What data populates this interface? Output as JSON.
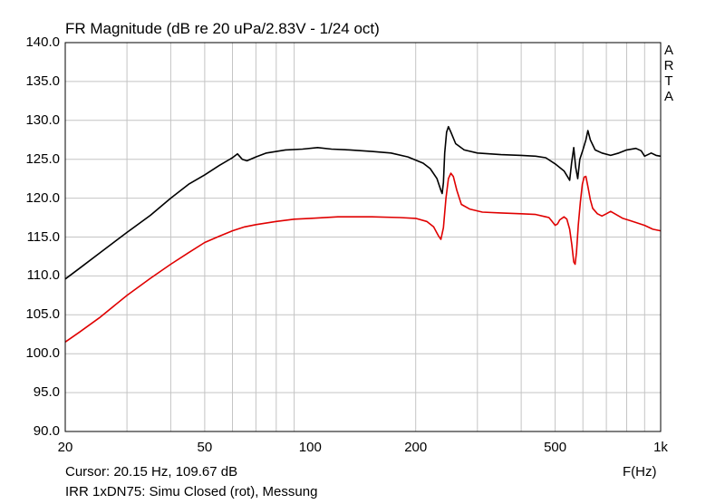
{
  "chart_data": {
    "type": "line",
    "title": "FR Magnitude (dB re 20 uPa/2.83V - 1/24 oct)",
    "xlabel": "F(Hz)",
    "ylabel": "",
    "xscale": "log",
    "xlim": [
      20,
      1000
    ],
    "ylim": [
      90,
      140
    ],
    "grid": true,
    "x_tick_labels": [
      "20",
      "50",
      "100",
      "200",
      "500",
      "1k"
    ],
    "x_tick_values": [
      20,
      50,
      100,
      200,
      500,
      1000
    ],
    "y_tick_labels": [
      "140.0",
      "135.0",
      "130.0",
      "125.0",
      "120.0",
      "115.0",
      "110.0",
      "105.0",
      "100.0",
      "95.0",
      "90.0"
    ],
    "y_tick_values": [
      140,
      135,
      130,
      125,
      120,
      115,
      110,
      105,
      100,
      95,
      90
    ],
    "series": [
      {
        "color": "#000000",
        "points": [
          [
            20,
            109.6
          ],
          [
            22,
            111
          ],
          [
            25,
            112.9
          ],
          [
            30,
            115.6
          ],
          [
            35,
            117.8
          ],
          [
            40,
            120
          ],
          [
            45,
            121.8
          ],
          [
            50,
            123
          ],
          [
            55,
            124.2
          ],
          [
            60,
            125.2
          ],
          [
            62,
            125.7
          ],
          [
            64,
            125
          ],
          [
            66,
            124.8
          ],
          [
            70,
            125.3
          ],
          [
            75,
            125.8
          ],
          [
            85,
            126.2
          ],
          [
            95,
            126.3
          ],
          [
            105,
            126.5
          ],
          [
            115,
            126.3
          ],
          [
            130,
            126.2
          ],
          [
            150,
            126
          ],
          [
            170,
            125.8
          ],
          [
            190,
            125.3
          ],
          [
            210,
            124.5
          ],
          [
            220,
            123.8
          ],
          [
            230,
            122.5
          ],
          [
            236,
            121
          ],
          [
            238,
            120.6
          ],
          [
            240,
            122
          ],
          [
            242,
            125.8
          ],
          [
            245,
            128.5
          ],
          [
            248,
            129.2
          ],
          [
            252,
            128.5
          ],
          [
            260,
            127
          ],
          [
            275,
            126.2
          ],
          [
            300,
            125.8
          ],
          [
            350,
            125.6
          ],
          [
            400,
            125.5
          ],
          [
            440,
            125.4
          ],
          [
            470,
            125.2
          ],
          [
            500,
            124.4
          ],
          [
            530,
            123.5
          ],
          [
            545,
            122.6
          ],
          [
            550,
            122.3
          ],
          [
            557,
            124.5
          ],
          [
            565,
            126.5
          ],
          [
            572,
            124
          ],
          [
            580,
            122.5
          ],
          [
            588,
            125
          ],
          [
            600,
            126.2
          ],
          [
            612,
            127.5
          ],
          [
            620,
            128.7
          ],
          [
            630,
            127.5
          ],
          [
            650,
            126.2
          ],
          [
            680,
            125.8
          ],
          [
            720,
            125.5
          ],
          [
            760,
            125.8
          ],
          [
            800,
            126.2
          ],
          [
            850,
            126.4
          ],
          [
            880,
            126.1
          ],
          [
            900,
            125.4
          ],
          [
            940,
            125.8
          ],
          [
            970,
            125.5
          ],
          [
            1000,
            125.4
          ]
        ]
      },
      {
        "color": "#e00000",
        "points": [
          [
            20,
            101.5
          ],
          [
            22,
            102.8
          ],
          [
            25,
            104.6
          ],
          [
            30,
            107.5
          ],
          [
            35,
            109.7
          ],
          [
            40,
            111.5
          ],
          [
            45,
            113
          ],
          [
            50,
            114.3
          ],
          [
            55,
            115.1
          ],
          [
            60,
            115.8
          ],
          [
            65,
            116.3
          ],
          [
            70,
            116.6
          ],
          [
            80,
            117
          ],
          [
            90,
            117.3
          ],
          [
            100,
            117.4
          ],
          [
            120,
            117.6
          ],
          [
            150,
            117.6
          ],
          [
            180,
            117.5
          ],
          [
            200,
            117.4
          ],
          [
            215,
            117
          ],
          [
            225,
            116.3
          ],
          [
            232,
            115.2
          ],
          [
            236,
            114.7
          ],
          [
            240,
            116.2
          ],
          [
            244,
            120
          ],
          [
            248,
            122.5
          ],
          [
            252,
            123.2
          ],
          [
            256,
            122.8
          ],
          [
            262,
            121
          ],
          [
            270,
            119.2
          ],
          [
            285,
            118.6
          ],
          [
            310,
            118.2
          ],
          [
            350,
            118.1
          ],
          [
            400,
            118
          ],
          [
            440,
            117.9
          ],
          [
            470,
            117.6
          ],
          [
            480,
            117.5
          ],
          [
            490,
            117
          ],
          [
            500,
            116.5
          ],
          [
            508,
            116.7
          ],
          [
            515,
            117.2
          ],
          [
            530,
            117.6
          ],
          [
            540,
            117.3
          ],
          [
            550,
            116
          ],
          [
            558,
            114
          ],
          [
            565,
            111.8
          ],
          [
            570,
            111.5
          ],
          [
            575,
            113
          ],
          [
            582,
            116.5
          ],
          [
            590,
            119.5
          ],
          [
            598,
            121.8
          ],
          [
            605,
            122.7
          ],
          [
            612,
            122.8
          ],
          [
            620,
            121.5
          ],
          [
            630,
            119.8
          ],
          [
            640,
            118.7
          ],
          [
            660,
            118
          ],
          [
            680,
            117.7
          ],
          [
            700,
            118
          ],
          [
            720,
            118.3
          ],
          [
            740,
            118
          ],
          [
            780,
            117.4
          ],
          [
            820,
            117.1
          ],
          [
            860,
            116.8
          ],
          [
            900,
            116.5
          ],
          [
            950,
            116
          ],
          [
            1000,
            115.8
          ]
        ]
      }
    ]
  },
  "page": {
    "title": "FR Magnitude (dB re 20 uPa/2.83V - 1/24 oct)",
    "brand": [
      "A",
      "R",
      "T",
      "A"
    ],
    "cursor": "Cursor: 20.15 Hz, 109.67 dB",
    "xunit": "F(Hz)",
    "legend": "IRR 1xDN75: Simu Closed (rot), Messung"
  }
}
